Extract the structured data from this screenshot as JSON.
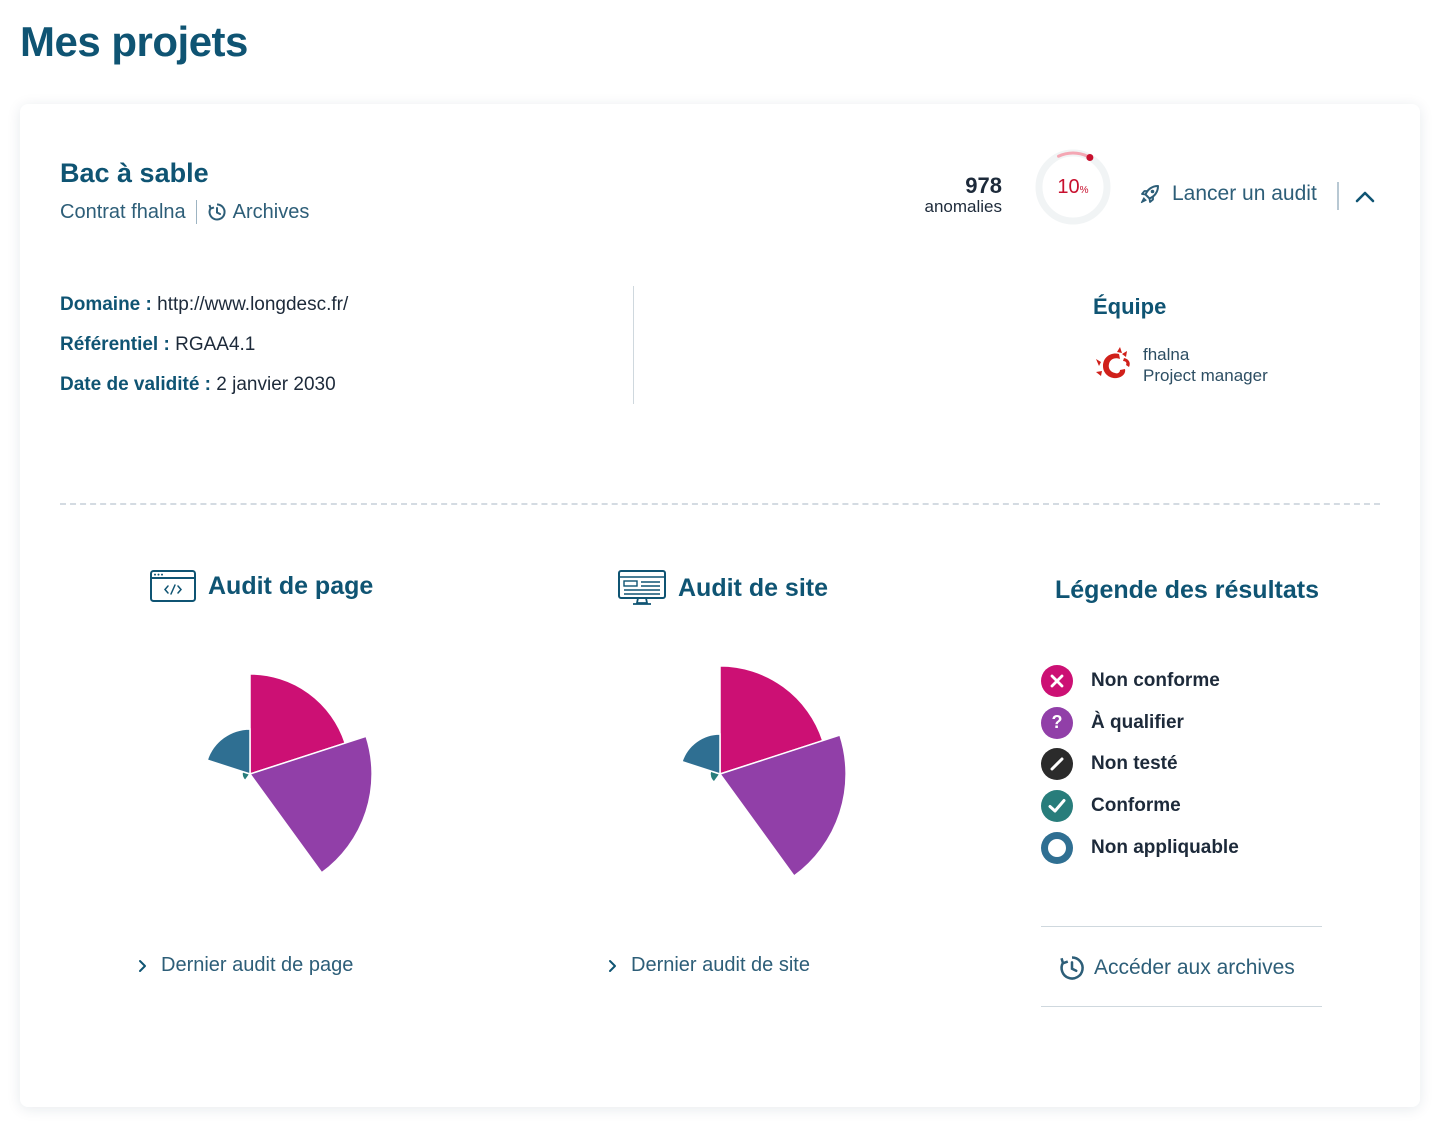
{
  "page": {
    "title": "Mes projets"
  },
  "project": {
    "name": "Bac à sable",
    "contract": "Contrat fhalna",
    "archives_label": "Archives",
    "anomalies_count": "978",
    "anomalies_label": "anomalies",
    "progress_percent": 10,
    "progress_value": "10",
    "progress_unit": "%",
    "launch_audit_label": "Lancer un audit",
    "domain_label": "Domaine :",
    "domain_value": "http://www.longdesc.fr/",
    "ref_label": "Référentiel :",
    "ref_value": "RGAA4.1",
    "validity_label": "Date de validité :",
    "validity_value": "2 janvier 2030"
  },
  "team": {
    "title": "Équipe",
    "members": [
      {
        "name": "fhalna",
        "role": "Project manager"
      }
    ]
  },
  "audits": {
    "page": {
      "title": "Audit de page",
      "link": "Dernier audit de page"
    },
    "site": {
      "title": "Audit de site",
      "link": "Dernier audit de site"
    }
  },
  "legend": {
    "title": "Légende des résultats",
    "items": [
      {
        "label": "Non conforme",
        "color": "#cc1074",
        "icon": "cross-icon"
      },
      {
        "label": "À qualifier",
        "color": "#913fa8",
        "icon": "question-icon"
      },
      {
        "label": "Non testé",
        "color": "#2b2b2b",
        "icon": "slash-icon"
      },
      {
        "label": "Conforme",
        "color": "#287d7b",
        "icon": "check-icon"
      },
      {
        "label": "Non appliquable",
        "color": "#2f6f92",
        "icon": "ring-icon"
      }
    ],
    "archives_link": "Accéder aux archives"
  },
  "chart_data": [
    {
      "type": "polar-area",
      "title": "Audit de page",
      "categories": [
        "Non conforme",
        "À qualifier",
        "Non testé",
        "Conforme",
        "Non appliquable"
      ],
      "colors": [
        "#cc1074",
        "#913fa8",
        "#2b2b2b",
        "#287d7b",
        "#2f6f92"
      ],
      "values": [
        100,
        122,
        0,
        8,
        45
      ]
    },
    {
      "type": "polar-area",
      "title": "Audit de site",
      "categories": [
        "Non conforme",
        "À qualifier",
        "Non testé",
        "Conforme",
        "Non appliquable"
      ],
      "colors": [
        "#cc1074",
        "#913fa8",
        "#2b2b2b",
        "#287d7b",
        "#2f6f92"
      ],
      "values": [
        108,
        126,
        0,
        10,
        40
      ]
    }
  ]
}
